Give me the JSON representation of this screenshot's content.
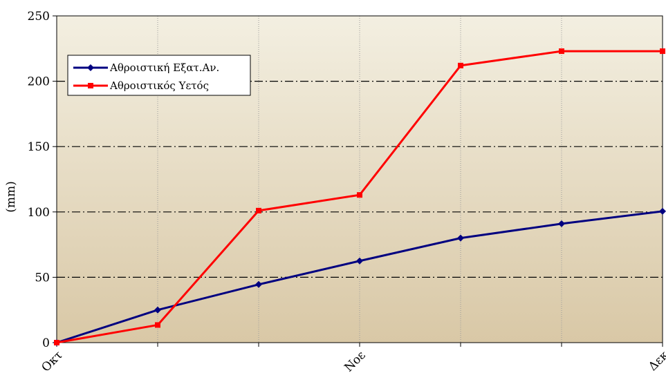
{
  "chart_data": {
    "type": "line",
    "title": "",
    "xlabel": "",
    "ylabel": "(mm)",
    "ylim": [
      0,
      250
    ],
    "yticks": [
      0,
      50,
      100,
      150,
      200,
      250
    ],
    "x_tick_labels": [
      {
        "index": 0,
        "label": "Οκτ"
      },
      {
        "index": 3,
        "label": "Νοε"
      },
      {
        "index": 6,
        "label": "Δεκ"
      }
    ],
    "grid": {
      "horizontal": "dash-dot",
      "vertical": "dotted"
    },
    "legend": "top-left",
    "series": [
      {
        "name": "Αθροιστική Εξατ.Αν.",
        "color": "#000080",
        "marker": "diamond",
        "values": [
          0,
          25,
          44.5,
          62.5,
          80,
          91,
          100.5
        ]
      },
      {
        "name": "Αθροιστικός Υετός",
        "color": "#ff0000",
        "marker": "square",
        "values": [
          0,
          13.5,
          101,
          113,
          212,
          223,
          223
        ]
      }
    ]
  }
}
